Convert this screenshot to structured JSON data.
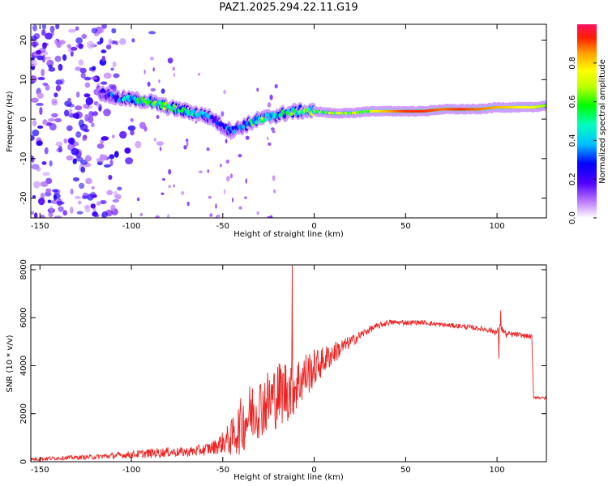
{
  "title": "PAZ1.2025.294.22.11.G19",
  "chart_data": [
    {
      "id": "spectrogram",
      "type": "heatmap",
      "xlabel": "Height of straight line (km)",
      "ylabel": "Frequency (Hz)",
      "xlim": [
        -155,
        127
      ],
      "ylim": [
        -25,
        24
      ],
      "xticks": [
        -150,
        -100,
        -50,
        0,
        50,
        100
      ],
      "yticks": [
        -20,
        -10,
        0,
        10,
        20
      ],
      "colorbar": {
        "label": "Normalized spectral amplitude",
        "range": [
          0,
          1
        ],
        "ticks": [
          0.0,
          0.2,
          0.4,
          0.6,
          0.8
        ],
        "tick_labels": [
          "0.0",
          "0.2",
          "0.4",
          "0.6",
          "0.8"
        ],
        "colormap": [
          "#ffffff",
          "#c080ff",
          "#5000ff",
          "#0000ff",
          "#00c0ff",
          "#00ffc0",
          "#00ff00",
          "#c0ff00",
          "#ffff00",
          "#ffa000",
          "#ff2000",
          "#ff1060"
        ]
      },
      "ridge": {
        "x": [
          -118,
          -110,
          -100,
          -90,
          -80,
          -70,
          -60,
          -55,
          -50,
          -45,
          -40,
          -35,
          -30,
          -25,
          -20,
          -15,
          -10,
          -5,
          0,
          10,
          20,
          30,
          40,
          50,
          60,
          70,
          80,
          90,
          100,
          110,
          120,
          127
        ],
        "freq": [
          7,
          5.5,
          5,
          4.5,
          3,
          2,
          1,
          0,
          -2,
          -3,
          -2,
          -1,
          0,
          0.5,
          1,
          1.5,
          2,
          2,
          2,
          1.5,
          1.5,
          2,
          2,
          2,
          2,
          2.5,
          2.5,
          2.5,
          3,
          3,
          3,
          3.5
        ],
        "amplitude": [
          0.15,
          0.3,
          0.4,
          0.5,
          0.55,
          0.4,
          0.35,
          0.3,
          0.3,
          0.3,
          0.3,
          0.45,
          0.55,
          0.5,
          0.4,
          0.45,
          0.5,
          0.55,
          0.6,
          0.6,
          0.65,
          0.7,
          0.8,
          0.9,
          0.9,
          0.85,
          0.9,
          0.85,
          0.8,
          0.75,
          0.7,
          0.6
        ]
      },
      "noise_region": {
        "x_range": [
          -155,
          -108
        ],
        "freq_range": [
          -25,
          24
        ],
        "amplitude": 0.15
      }
    },
    {
      "id": "snr",
      "type": "line",
      "xlabel": "Height of straight line (km)",
      "ylabel": "SNR (10 * v/v)",
      "xlim": [
        -155,
        127
      ],
      "ylim": [
        0,
        8200
      ],
      "xticks": [
        -150,
        -100,
        -50,
        0,
        50,
        100
      ],
      "yticks": [
        0,
        2000,
        4000,
        6000,
        8000
      ],
      "color": "#ee2222",
      "series": {
        "name": "SNR",
        "x": [
          -155,
          -140,
          -120,
          -100,
          -90,
          -80,
          -70,
          -60,
          -55,
          -50,
          -45,
          -40,
          -35,
          -30,
          -25,
          -20,
          -15,
          -12,
          -10,
          -5,
          0,
          5,
          10,
          20,
          30,
          40,
          50,
          60,
          70,
          80,
          90,
          95,
          100,
          102,
          105,
          110,
          115,
          119,
          120,
          125,
          127
        ],
        "mean": [
          100,
          150,
          200,
          300,
          350,
          400,
          400,
          500,
          600,
          800,
          1000,
          1500,
          2000,
          2300,
          2500,
          2800,
          3000,
          3100,
          3200,
          3600,
          3900,
          4200,
          4500,
          5000,
          5500,
          5800,
          5800,
          5800,
          5700,
          5650,
          5550,
          5500,
          5400,
          5600,
          5300,
          5300,
          5250,
          5200,
          2700,
          2650,
          2650
        ],
        "spread": [
          80,
          80,
          100,
          150,
          200,
          200,
          200,
          250,
          300,
          450,
          800,
          1200,
          1300,
          1300,
          1400,
          1400,
          1400,
          1300,
          1200,
          1000,
          800,
          600,
          500,
          250,
          150,
          120,
          100,
          100,
          100,
          100,
          100,
          120,
          150,
          150,
          150,
          120,
          100,
          100,
          60,
          60,
          60
        ]
      },
      "spikes": [
        {
          "x": -12,
          "y": 8200
        },
        {
          "x": 102,
          "y": 6300
        },
        {
          "x": 101,
          "y": 4300
        }
      ]
    }
  ]
}
